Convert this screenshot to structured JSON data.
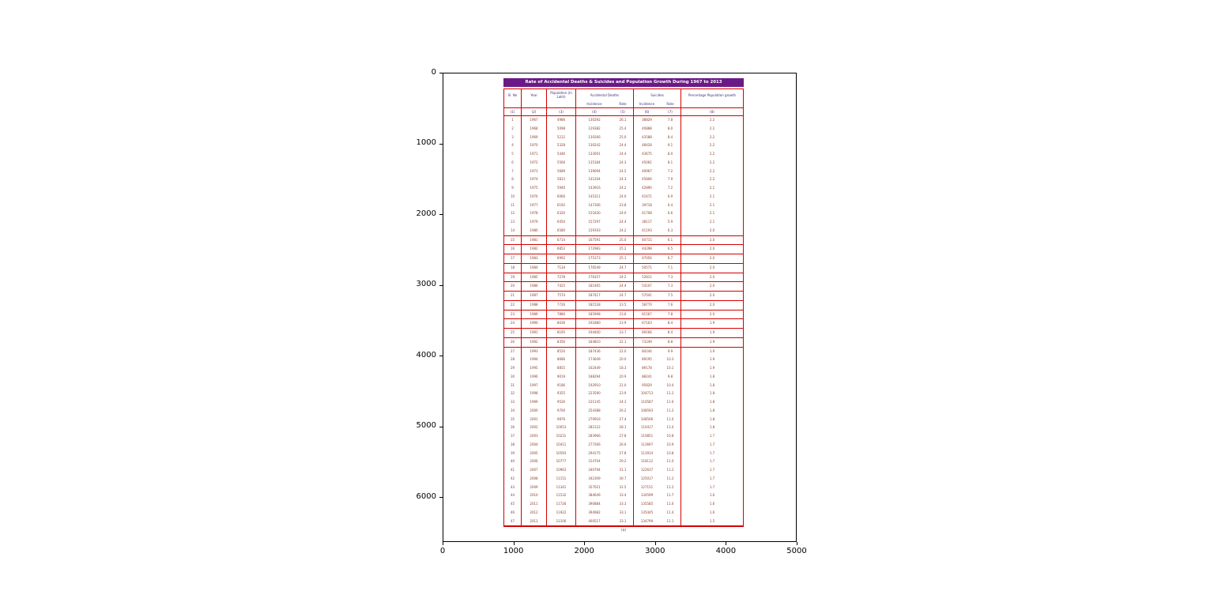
{
  "axes": {
    "x_ticks": [
      "0",
      "1000",
      "2000",
      "3000",
      "4000",
      "5000"
    ],
    "y_ticks": [
      "0",
      "1000",
      "2000",
      "3000",
      "4000",
      "5000",
      "6000"
    ],
    "x_values": [
      0,
      1000,
      2000,
      3000,
      4000,
      5000
    ],
    "y_values": [
      0,
      1000,
      2000,
      3000,
      4000,
      5000,
      6000
    ]
  },
  "table": {
    "title": "Rate of Accidental Deaths & Suicides and Population Growth During 1967 to 2013",
    "caption": "(a)",
    "headers": {
      "sl": "Sl. No",
      "year": "Year",
      "population": "Population (in Lakh)",
      "accidental": "Accidental Deaths",
      "suicides": "Suicides",
      "growth": "Percentage Population growth",
      "incidence1": "Incidence",
      "rate1": "Rate",
      "incidence2": "Incidence",
      "rate2": "Rate",
      "numbers": [
        "(1)",
        "(2)",
        "(3)",
        "(4)",
        "(5)",
        "(6)",
        "(7)",
        "(8)"
      ]
    },
    "highlight_rows": [
      14,
      15,
      16,
      17,
      18,
      19,
      20,
      21,
      22,
      23,
      24,
      25,
      26
    ]
  },
  "chart_data": {
    "type": "table",
    "title": "Rate of Accidental Deaths & Suicides and Population Growth During 1967 to 2013",
    "columns": [
      "Sl. No",
      "Year",
      "Population (in Lakh)",
      "Accidental Deaths Incidence",
      "Accidental Deaths Rate",
      "Suicides Incidence",
      "Suicides Rate",
      "Percentage Population growth"
    ],
    "rows": [
      [
        "1",
        "1967",
        "4986",
        "130292",
        "26.1",
        "38829",
        "7.8",
        "2.2"
      ],
      [
        "2",
        "1968",
        "5098",
        "129382",
        "25.4",
        "40888",
        "8.0",
        "2.2"
      ],
      [
        "3",
        "1969",
        "5212",
        "130266",
        "25.0",
        "43588",
        "8.4",
        "2.2"
      ],
      [
        "4",
        "1970",
        "5328",
        "130242",
        "24.4",
        "48428",
        "9.1",
        "2.2"
      ],
      [
        "5",
        "1971",
        "5446",
        "133001",
        "24.4",
        "43675",
        "8.0",
        "2.2"
      ],
      [
        "6",
        "1972",
        "5566",
        "135184",
        "24.3",
        "45061",
        "8.1",
        "2.2"
      ],
      [
        "7",
        "1973",
        "5689",
        "139094",
        "24.5",
        "40967",
        "7.2",
        "2.2"
      ],
      [
        "8",
        "1974",
        "5813",
        "141204",
        "24.3",
        "45806",
        "7.9",
        "2.2"
      ],
      [
        "9",
        "1975",
        "5940",
        "143916",
        "24.2",
        "42890",
        "7.2",
        "2.1"
      ],
      [
        "10",
        "1976",
        "6066",
        "145311",
        "24.0",
        "41671",
        "6.9",
        "2.1"
      ],
      [
        "11",
        "1977",
        "6192",
        "147306",
        "23.8",
        "39718",
        "6.4",
        "2.1"
      ],
      [
        "12",
        "1978",
        "6320",
        "151830",
        "24.0",
        "41708",
        "6.6",
        "2.1"
      ],
      [
        "13",
        "1979",
        "6450",
        "157297",
        "24.4",
        "38117",
        "5.9",
        "2.1"
      ],
      [
        "14",
        "1980",
        "6580",
        "159193",
        "24.2",
        "41193",
        "6.3",
        "2.0"
      ],
      [
        "15",
        "1981",
        "6714",
        "167591",
        "25.0",
        "40715",
        "6.1",
        "2.0"
      ],
      [
        "16",
        "1982",
        "6852",
        "172983",
        "25.2",
        "44298",
        "6.5",
        "2.0"
      ],
      [
        "17",
        "1983",
        "6992",
        "175373",
        "25.1",
        "47056",
        "6.7",
        "2.0"
      ],
      [
        "18",
        "1984",
        "7134",
        "176549",
        "24.7",
        "50571",
        "7.1",
        "2.0"
      ],
      [
        "19",
        "1985",
        "7278",
        "176357",
        "24.2",
        "52811",
        "7.3",
        "2.0"
      ],
      [
        "20",
        "1986",
        "7425",
        "181465",
        "24.4",
        "54107",
        "7.3",
        "2.0"
      ],
      [
        "21",
        "1987",
        "7574",
        "187417",
        "24.7",
        "57041",
        "7.5",
        "2.0"
      ],
      [
        "22",
        "1988",
        "7726",
        "181528",
        "23.5",
        "58770",
        "7.6",
        "2.0"
      ],
      [
        "23",
        "1989",
        "7880",
        "185998",
        "23.6",
        "61567",
        "7.8",
        "2.0"
      ],
      [
        "24",
        "1990",
        "8036",
        "191880",
        "23.9",
        "67163",
        "8.4",
        "1.9"
      ],
      [
        "25",
        "1991",
        "8195",
        "194400",
        "23.7",
        "69166",
        "8.4",
        "1.9"
      ],
      [
        "26",
        "1992",
        "8356",
        "184810",
        "22.1",
        "73249",
        "8.8",
        "1.9"
      ],
      [
        "27",
        "1993",
        "8520",
        "187436",
        "22.0",
        "84244",
        "9.9",
        "1.9"
      ],
      [
        "28",
        "1994",
        "8686",
        "173649",
        "20.0",
        "89195",
        "10.3",
        "1.9"
      ],
      [
        "29",
        "1995",
        "8855",
        "162449",
        "18.3",
        "89178",
        "10.1",
        "1.9"
      ],
      [
        "30",
        "1996",
        "9019",
        "188294",
        "20.9",
        "88241",
        "9.8",
        "1.8"
      ],
      [
        "31",
        "1997",
        "9186",
        "192910",
        "21.0",
        "95829",
        "10.4",
        "1.8"
      ],
      [
        "32",
        "1998",
        "9355",
        "223590",
        "23.9",
        "104713",
        "11.2",
        "1.8"
      ],
      [
        "33",
        "1999",
        "9526",
        "231145",
        "24.3",
        "110587",
        "11.6",
        "1.8"
      ],
      [
        "34",
        "2000",
        "9700",
        "254388",
        "26.2",
        "108593",
        "11.2",
        "1.8"
      ],
      [
        "35",
        "2001",
        "9876",
        "270916",
        "27.4",
        "108506",
        "11.0",
        "1.8"
      ],
      [
        "36",
        "2002",
        "10053",
        "282122",
        "28.1",
        "110417",
        "11.0",
        "1.8"
      ],
      [
        "37",
        "2003",
        "10231",
        "283966",
        "27.8",
        "110851",
        "10.8",
        "1.7"
      ],
      [
        "38",
        "2004",
        "10411",
        "277266",
        "26.6",
        "113697",
        "10.9",
        "1.7"
      ],
      [
        "39",
        "2005",
        "10593",
        "294175",
        "27.8",
        "113914",
        "10.8",
        "1.7"
      ],
      [
        "40",
        "2006",
        "10777",
        "314704",
        "29.2",
        "118112",
        "11.0",
        "1.7"
      ],
      [
        "41",
        "2007",
        "10963",
        "340794",
        "31.1",
        "122637",
        "11.2",
        "1.7"
      ],
      [
        "42",
        "2008",
        "11151",
        "342309",
        "30.7",
        "125017",
        "11.2",
        "1.7"
      ],
      [
        "43",
        "2009",
        "11341",
        "357021",
        "31.5",
        "127151",
        "11.2",
        "1.7"
      ],
      [
        "44",
        "2010",
        "11532",
        "384649",
        "33.4",
        "134599",
        "11.7",
        "1.6"
      ],
      [
        "45",
        "2011",
        "11726",
        "390884",
        "33.3",
        "135585",
        "11.6",
        "1.6"
      ],
      [
        "46",
        "2012",
        "11922",
        "394982",
        "33.1",
        "135445",
        "11.4",
        "1.6"
      ],
      [
        "47",
        "2013",
        "12100",
        "400517",
        "33.1",
        "134799",
        "11.1",
        "1.5"
      ]
    ]
  }
}
